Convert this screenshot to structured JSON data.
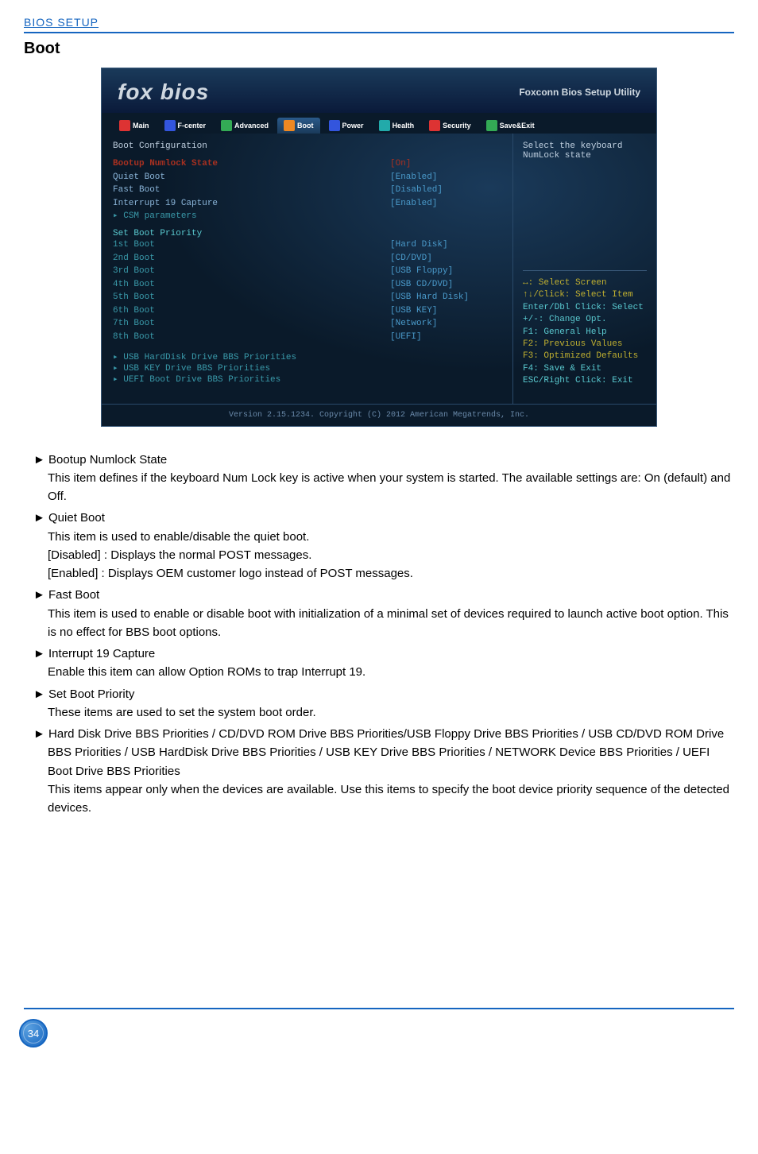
{
  "header": {
    "label": "BIOS SETUP"
  },
  "section": {
    "title": "Boot"
  },
  "bios": {
    "logo": "fox bios",
    "util": "Foxconn Bios Setup Utility",
    "tabs": [
      "Main",
      "F-center",
      "Advanced",
      "Boot",
      "Power",
      "Health",
      "Security",
      "Save&Exit"
    ],
    "cfg_title": "Boot Configuration",
    "rows": [
      {
        "label": "Bootup Numlock State",
        "val": "[On]",
        "hl": true
      },
      {
        "label": "Quiet Boot",
        "val": "[Enabled]"
      },
      {
        "label": "Fast Boot",
        "val": "[Disabled]"
      },
      {
        "label": "  Interrupt 19 Capture",
        "val": "[Enabled]"
      }
    ],
    "csm": "▸ CSM parameters",
    "priority_title": "Set Boot Priority",
    "boots": [
      {
        "label": "1st Boot",
        "val": "[Hard Disk]"
      },
      {
        "label": "2nd Boot",
        "val": "[CD/DVD]"
      },
      {
        "label": "3rd Boot",
        "val": "[USB Floppy]"
      },
      {
        "label": "4th Boot",
        "val": "[USB CD/DVD]"
      },
      {
        "label": "5th Boot",
        "val": "[USB Hard Disk]"
      },
      {
        "label": "6th Boot",
        "val": "[USB KEY]"
      },
      {
        "label": "7th Boot",
        "val": "[Network]"
      },
      {
        "label": "8th Boot",
        "val": "[UEFI]"
      }
    ],
    "bbs": [
      "▸ USB HardDisk Drive BBS Priorities",
      "▸ USB KEY Drive BBS Priorities",
      "▸ UEFI Boot Drive BBS Priorities"
    ],
    "help_top1": "Select the keyboard",
    "help_top2": "NumLock state",
    "help_lines": [
      {
        "t": "↔: Select Screen",
        "c": "yellow"
      },
      {
        "t": "↑↓/Click: Select Item",
        "c": "yellow"
      },
      {
        "t": "Enter/Dbl Click: Select",
        "c": "teal-bright"
      },
      {
        "t": "+/-: Change Opt.",
        "c": "teal-bright"
      },
      {
        "t": "F1: General Help",
        "c": "teal-bright"
      },
      {
        "t": "F2: Previous Values",
        "c": "yellow"
      },
      {
        "t": "F3: Optimized Defaults",
        "c": "yellow"
      },
      {
        "t": "F4: Save & Exit",
        "c": "teal-bright"
      },
      {
        "t": "ESC/Right Click: Exit",
        "c": "teal-bright"
      }
    ],
    "footer": "Version 2.15.1234. Copyright (C) 2012 American Megatrends, Inc."
  },
  "items": [
    {
      "title": "► Bootup Numlock State",
      "body": [
        "This item defines if the keyboard Num Lock key is active when your system is started. The available settings are: On (default) and Off."
      ]
    },
    {
      "title": "► Quiet Boot",
      "body": [
        "This item is used to enable/disable the quiet boot.",
        "[Disabled] : Displays the normal POST messages.",
        "[Enabled] : Displays OEM customer logo instead of POST messages."
      ]
    },
    {
      "title": "► Fast Boot",
      "body": [
        "This item is used to enable or disable boot with initialization of a minimal set of devices required to launch active boot option. This is no effect for BBS boot options."
      ]
    },
    {
      "title": "► Interrupt 19 Capture",
      "body": [
        "Enable this item can allow Option ROMs to trap Interrupt 19."
      ]
    },
    {
      "title": "► Set Boot Priority",
      "body": [
        "These items are used to set the system boot order."
      ]
    },
    {
      "title": "► Hard Disk Drive BBS Priorities / CD/DVD ROM Drive BBS Priorities/USB Floppy Drive BBS Priorities / USB CD/DVD ROM Drive BBS Priorities / USB HardDisk Drive BBS Priorities / USB KEY Drive BBS Priorities / NETWORK Device BBS Priorities / UEFI Boot Drive BBS Priorities",
      "body": [
        "This items appear only when the devices are available. Use this items to specify the boot device priority sequence of the detected devices."
      ]
    }
  ],
  "page": "34"
}
